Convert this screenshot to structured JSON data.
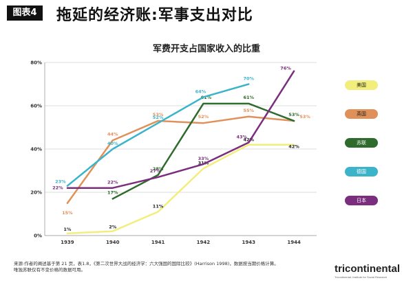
{
  "header": {
    "tag": "图表4",
    "title": "拖延的经济账:军事支出对比"
  },
  "footnote": {
    "line1": "来源:作者的阐述基于第 21 页，表1.8，《第二次世界大战的经济学：六大强国的国际比较》(Harrison 1998)，数据按当期价格计算。",
    "line2": "唯独苏联仅有不变价格的数据可用。"
  },
  "brand": {
    "logo_text": "tricontinental",
    "logo_sub": "Tricontinental: Institute for Social Research"
  },
  "chart_data": {
    "type": "line",
    "title": "军费开支占国家收入的比重",
    "x": [
      "1939",
      "1940",
      "1941",
      "1942",
      "1943",
      "1944"
    ],
    "ylim": [
      0,
      80
    ],
    "yticks": [
      "0%",
      "20%",
      "40%",
      "60%",
      "80%"
    ],
    "grid": true,
    "legend_position": "right",
    "series": [
      {
        "name": "美国",
        "color": "#f3ee7c",
        "values": [
          1,
          2,
          11,
          31,
          42,
          42
        ],
        "labels": [
          "1%",
          "2%",
          "11%",
          "31%",
          "42%",
          "42%"
        ]
      },
      {
        "name": "英国",
        "color": "#e0915a",
        "values": [
          15,
          44,
          53,
          52,
          55,
          53
        ],
        "labels": [
          "15%",
          "44%",
          "53%",
          "52%",
          "55%",
          "53%"
        ]
      },
      {
        "name": "苏联",
        "color": "#2e6b2c",
        "values": [
          null,
          17,
          28,
          61,
          61,
          53
        ],
        "labels": [
          "",
          "17%",
          "28%",
          "61%",
          "61%",
          "53%"
        ]
      },
      {
        "name": "德国",
        "color": "#3bb3c9",
        "values": [
          23,
          40,
          52,
          64,
          70,
          null
        ],
        "labels": [
          "23%",
          "40%",
          "52%",
          "64%",
          "70%",
          ""
        ]
      },
      {
        "name": "日本",
        "color": "#7b2d7e",
        "values": [
          22,
          22,
          27,
          33,
          43,
          76
        ],
        "labels": [
          "22%",
          "22%",
          "27%",
          "33%",
          "43%",
          "76%"
        ]
      }
    ]
  }
}
